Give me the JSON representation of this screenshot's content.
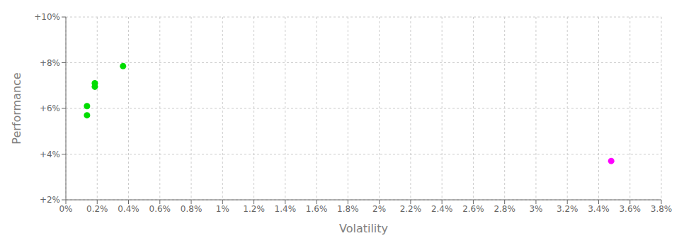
{
  "chart_data": {
    "type": "scatter",
    "xlabel": "Volatility",
    "ylabel": "Performance",
    "x": [
      0.00185,
      0.00185,
      0.00135,
      0.00135,
      0.00365,
      0.0348
    ],
    "values": [
      0.071,
      0.0695,
      0.061,
      0.057,
      0.0785,
      0.037
    ],
    "colors": [
      "#00dd00",
      "#00dd00",
      "#00dd00",
      "#00dd00",
      "#00dd00",
      "#ff00ff"
    ],
    "xlim": [
      0.0,
      0.038
    ],
    "ylim": [
      0.02,
      0.1
    ],
    "xticks": [
      {
        "value": 0.0,
        "label": "0%"
      },
      {
        "value": 0.002,
        "label": "0.2%"
      },
      {
        "value": 0.004,
        "label": "0.4%"
      },
      {
        "value": 0.006,
        "label": "0.6%"
      },
      {
        "value": 0.008,
        "label": "0.8%"
      },
      {
        "value": 0.01,
        "label": "1%"
      },
      {
        "value": 0.012,
        "label": "1.2%"
      },
      {
        "value": 0.014,
        "label": "1.4%"
      },
      {
        "value": 0.016,
        "label": "1.6%"
      },
      {
        "value": 0.018,
        "label": "1.8%"
      },
      {
        "value": 0.02,
        "label": "2%"
      },
      {
        "value": 0.022,
        "label": "2.2%"
      },
      {
        "value": 0.024,
        "label": "2.4%"
      },
      {
        "value": 0.026,
        "label": "2.6%"
      },
      {
        "value": 0.028,
        "label": "2.8%"
      },
      {
        "value": 0.03,
        "label": "3%"
      },
      {
        "value": 0.032,
        "label": "3.2%"
      },
      {
        "value": 0.034,
        "label": "3.4%"
      },
      {
        "value": 0.036,
        "label": "3.6%"
      },
      {
        "value": 0.038,
        "label": "3.8%"
      }
    ],
    "yticks": [
      {
        "value": 0.02,
        "label": "+2%"
      },
      {
        "value": 0.04,
        "label": "+4%"
      },
      {
        "value": 0.06,
        "label": "+6%"
      },
      {
        "value": 0.08,
        "label": "+8%"
      },
      {
        "value": 0.1,
        "label": "+10%"
      }
    ],
    "grid": true
  }
}
